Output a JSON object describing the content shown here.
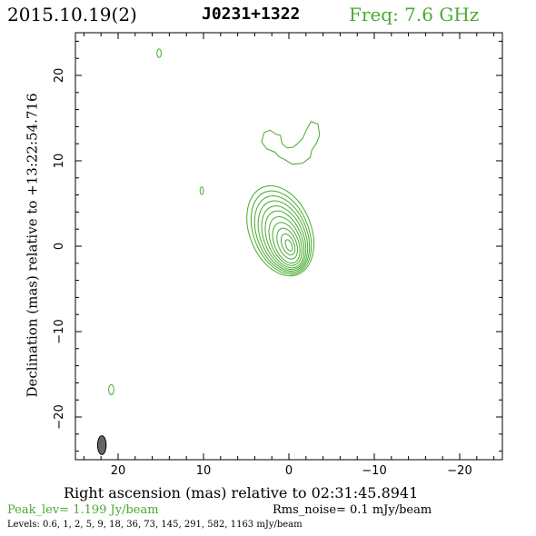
{
  "header": {
    "date": "2015.10.19(2)",
    "source": "J0231+1322",
    "frequency": "Freq: 7.6 GHz"
  },
  "footer": {
    "peak": "Peak_lev=  1.199 Jy/beam",
    "rms": "Rms_noise=  0.1 mJy/beam",
    "levels": "Levels: 0.6,    1,    2,    5,    9,   18,   36,   73,  145,  291,  582,  1163 mJy/beam"
  },
  "colors": {
    "contour": "#4aaa30",
    "text": "#000000",
    "beam": "#666666"
  },
  "chart_data": {
    "type": "contour",
    "xlabel": "Right ascension (mas) relative to 02:31:45.8941",
    "ylabel": "Declination (mas) relative to +13:22:54.716",
    "xlim": [
      25,
      -25
    ],
    "ylim": [
      -25,
      25
    ],
    "x_ticks": [
      20,
      10,
      0,
      -10,
      -20
    ],
    "y_ticks": [
      20,
      10,
      0,
      -10,
      -20
    ],
    "x_tick_labels": [
      "20",
      "10",
      "0",
      "−10",
      "−20"
    ],
    "y_tick_labels": [
      "20",
      "10",
      "0",
      "−10",
      "−20"
    ],
    "levels_mJy": [
      0.6,
      1,
      2,
      5,
      9,
      18,
      36,
      73,
      145,
      291,
      582,
      1163
    ],
    "core": {
      "rings": [
        {
          "cx": 1.0,
          "cy": 1.8,
          "rx": 3.6,
          "ry": 5.5,
          "rot": 22
        },
        {
          "cx": 0.9,
          "cy": 1.6,
          "rx": 3.2,
          "ry": 5.1,
          "rot": 22
        },
        {
          "cx": 0.8,
          "cy": 1.4,
          "rx": 2.9,
          "ry": 4.7,
          "rot": 22
        },
        {
          "cx": 0.7,
          "cy": 1.2,
          "rx": 2.6,
          "ry": 4.3,
          "rot": 22
        },
        {
          "cx": 0.6,
          "cy": 1.0,
          "rx": 2.3,
          "ry": 3.9,
          "rot": 22
        },
        {
          "cx": 0.5,
          "cy": 0.8,
          "rx": 2.0,
          "ry": 3.5,
          "rot": 22
        },
        {
          "cx": 0.4,
          "cy": 0.6,
          "rx": 1.7,
          "ry": 3.0,
          "rot": 22
        },
        {
          "cx": 0.3,
          "cy": 0.4,
          "rx": 1.4,
          "ry": 2.5,
          "rot": 22
        },
        {
          "cx": 0.2,
          "cy": 0.3,
          "rx": 1.05,
          "ry": 1.9,
          "rot": 22
        },
        {
          "cx": 0.1,
          "cy": 0.2,
          "rx": 0.7,
          "ry": 1.3,
          "rot": 22
        },
        {
          "cx": 0.0,
          "cy": 0.1,
          "rx": 0.35,
          "ry": 0.7,
          "rot": 22
        }
      ]
    },
    "blobs": [
      {
        "cx": 15.2,
        "cy": 22.6,
        "rx": 0.25,
        "ry": 0.5
      },
      {
        "cx": 10.2,
        "cy": 6.5,
        "rx": 0.2,
        "ry": 0.45
      },
      {
        "cx": 20.8,
        "cy": -16.8,
        "rx": 0.3,
        "ry": 0.6
      }
    ],
    "feature": [
      [
        1.0,
        13.0
      ],
      [
        0.8,
        12.0
      ],
      [
        0.2,
        11.5
      ],
      [
        -0.5,
        11.6
      ],
      [
        -1.0,
        12.0
      ],
      [
        -1.6,
        12.6
      ],
      [
        -2.0,
        13.5
      ],
      [
        -2.6,
        14.6
      ],
      [
        -3.4,
        14.3
      ],
      [
        -3.6,
        13.0
      ],
      [
        -3.2,
        12.0
      ],
      [
        -2.7,
        11.3
      ],
      [
        -2.5,
        10.4
      ],
      [
        -1.6,
        9.7
      ],
      [
        -0.4,
        9.6
      ],
      [
        0.6,
        10.2
      ],
      [
        1.2,
        10.5
      ],
      [
        1.6,
        11.0
      ],
      [
        2.6,
        11.4
      ],
      [
        3.2,
        12.2
      ],
      [
        2.9,
        13.3
      ],
      [
        2.2,
        13.6
      ],
      [
        1.5,
        13.1
      ]
    ],
    "beam": {
      "cx": 21.9,
      "cy": -23.3,
      "rx": 0.5,
      "ry": 1.1,
      "rot": 0
    }
  }
}
